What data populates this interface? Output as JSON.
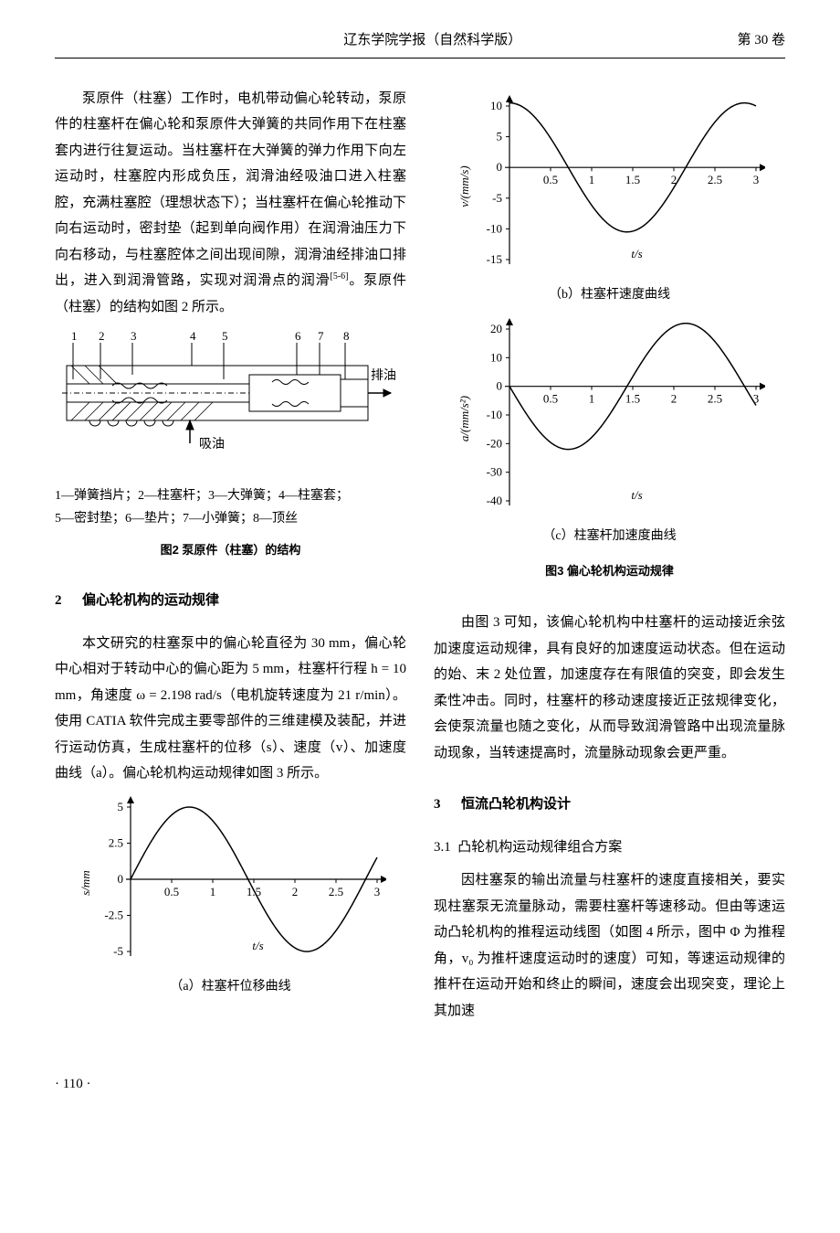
{
  "header": {
    "journal": "辽东学院学报（自然科学版）",
    "volume": "第 30 卷"
  },
  "para1": "泵原件（柱塞）工作时，电机带动偏心轮转动，泵原件的柱塞杆在偏心轮和泵原件大弹簧的共同作用下在柱塞套内进行往复运动。当柱塞杆在大弹簧的弹力作用下向左运动时，柱塞腔内形成负压，润滑油经吸油口进入柱塞腔，充满柱塞腔（理想状态下）；当柱塞杆在偏心轮推动下向右运动时，密封垫（起到单向阀作用）在润滑油压力下向右移动，与柱塞腔体之间出现间隙，润滑油经排油口排出，进入到润滑管路，实现对润滑点的润滑",
  "para1_cite": "[5-6]",
  "para1_tail": "。泵原件（柱塞）的结构如图 2 所示。",
  "fig2": {
    "legend_line1": "1—弹簧挡片；2—柱塞杆；3—大弹簧；4—柱塞套；",
    "legend_line2": "5—密封垫；6—垫片；7—小弹簧；8—顶丝",
    "caption": "图2 泵原件（柱塞）的结构",
    "labels": [
      "1",
      "2",
      "3",
      "4",
      "5",
      "6",
      "7",
      "8"
    ],
    "label_out": "排油",
    "label_in": "吸油"
  },
  "section2": {
    "num": "2",
    "title": "偏心轮机构的运动规律"
  },
  "para2": "本文研究的柱塞泵中的偏心轮直径为 30 mm，偏心轮中心相对于转动中心的偏心距为 5 mm，柱塞杆行程 h = 10 mm，角速度 ω = 2.198 rad/s（电机旋转速度为 21 r/min）。使用 CATIA 软件完成主要零部件的三维建模及装配，并进行运动仿真，生成柱塞杆的位移（s）、速度（v）、加速度曲线（a）。偏心轮机构运动规律如图 3 所示。",
  "fig3a": {
    "subcaption": "（a）柱塞杆位移曲线",
    "ylabel": "s/mm",
    "xlabel": "t/s",
    "yticks": [
      -5,
      -2.5,
      0,
      2.5,
      5
    ],
    "xticks": [
      0.5,
      1,
      1.5,
      2,
      2.5,
      3
    ],
    "data": {
      "amplitude": 5,
      "period": 3,
      "phase": 0,
      "type": "negcos-like-sine"
    }
  },
  "fig3b": {
    "subcaption": "（b）柱塞杆速度曲线",
    "ylabel": "v/(mm/s)",
    "xlabel": "t/s",
    "yticks": [
      -15,
      -10,
      -5,
      0,
      5,
      10
    ],
    "xticks": [
      0.5,
      1,
      1.5,
      2,
      2.5,
      3
    ],
    "data": {
      "amplitude": 10.5,
      "period": 3
    }
  },
  "fig3c": {
    "subcaption": "（c）柱塞杆加速度曲线",
    "ylabel": "a/(mm/s²)",
    "xlabel": "t/s",
    "yticks": [
      -40,
      -30,
      -20,
      -10,
      0,
      10,
      20
    ],
    "xticks": [
      0.5,
      1,
      1.5,
      2,
      2.5,
      3
    ],
    "data": {
      "amplitude": 22,
      "offset": 0,
      "period": 3
    }
  },
  "fig3caption": "图3 偏心轮机构运动规律",
  "para3": "由图 3 可知，该偏心轮机构中柱塞杆的运动接近余弦加速度运动规律，具有良好的加速度运动状态。但在运动的始、末 2 处位置，加速度存在有限值的突变，即会发生柔性冲击。同时，柱塞杆的移动速度接近正弦规律变化，会使泵流量也随之变化，从而导致润滑管路中出现流量脉动现象，当转速提高时，流量脉动现象会更严重。",
  "section3": {
    "num": "3",
    "title": "恒流凸轮机构设计"
  },
  "subsection31": {
    "num": "3.1",
    "title": "凸轮机构运动规律组合方案"
  },
  "para4": "因柱塞泵的输出流量与柱塞杆的速度直接相关，要实现柱塞泵无流量脉动，需要柱塞杆等速移动。但由等速运动凸轮机构的推程运动线图（如图 4 所示，图中 Φ 为推程角，v₀ 为推杆速度运动时的速度）可知，等速运动规律的推杆在运动开始和终止的瞬间，速度会出现突变，理论上其加速",
  "page_number": "· 110 ·",
  "chart_style": {
    "stroke": "#000000",
    "stroke_width": 1.2,
    "curve_width": 1.5,
    "font_size": 13,
    "axis_font": "Times New Roman, serif"
  }
}
